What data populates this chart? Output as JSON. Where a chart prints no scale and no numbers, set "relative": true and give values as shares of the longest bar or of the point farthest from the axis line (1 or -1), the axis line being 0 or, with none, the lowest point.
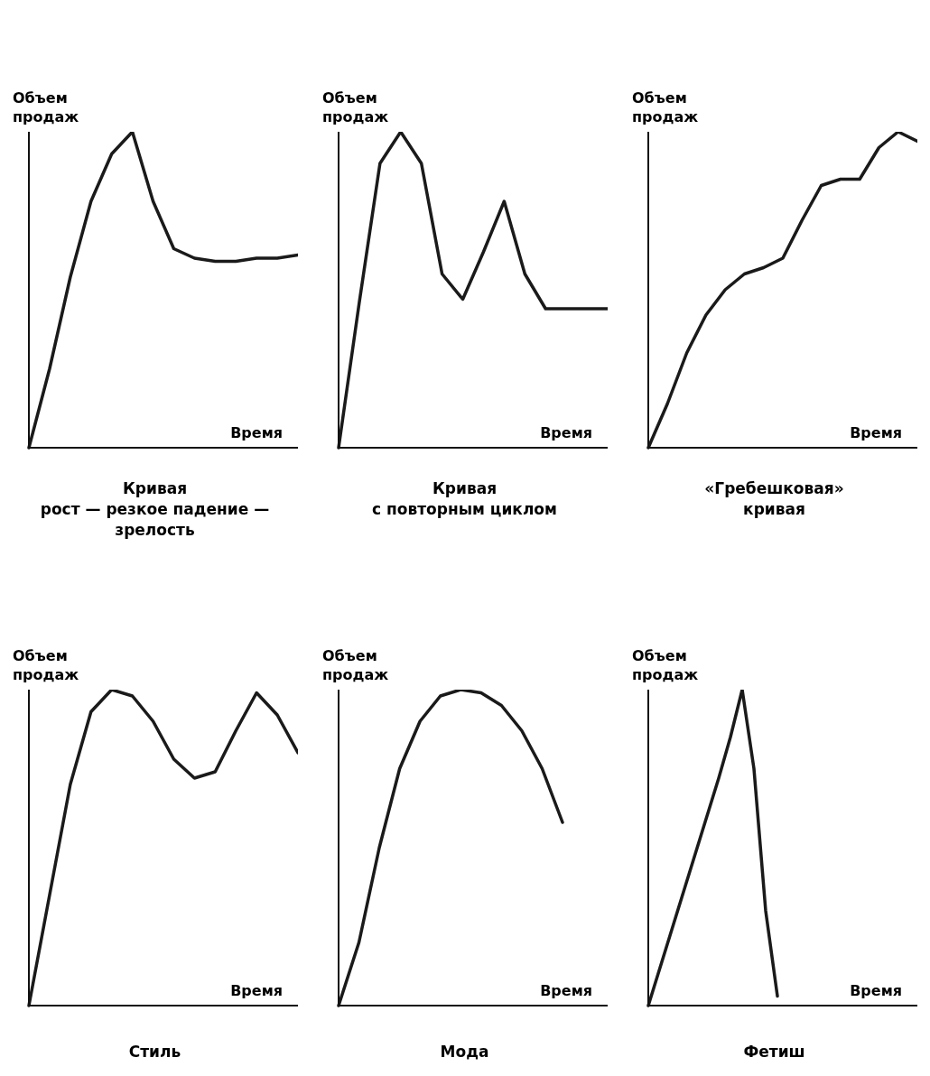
{
  "chart_data": [
    {
      "type": "line",
      "title": "Кривая\nрост — резкое падение —\nзрелость",
      "xlabel": "Время",
      "ylabel": "Объем\nпродаж",
      "relative": true,
      "color": "#1a1a1a",
      "categories": [
        null,
        null,
        null,
        null,
        null,
        null,
        null,
        null,
        null,
        null,
        null,
        null,
        null,
        null
      ],
      "values": [
        0,
        0.25,
        0.54,
        0.78,
        0.93,
        1.0,
        0.78,
        0.63,
        0.6,
        0.59,
        0.59,
        0.6,
        0.6,
        0.61
      ]
    },
    {
      "type": "line",
      "title": "Кривая\nс повторным циклом",
      "xlabel": "Время",
      "ylabel": "Объем\nпродаж",
      "relative": true,
      "color": "#1a1a1a",
      "categories": [
        null,
        null,
        null,
        null,
        null,
        null,
        null,
        null,
        null,
        null,
        null,
        null,
        null,
        null
      ],
      "values": [
        0,
        0.46,
        0.9,
        1.0,
        0.9,
        0.55,
        0.47,
        0.62,
        0.78,
        0.55,
        0.44,
        0.44,
        0.44,
        0.44
      ]
    },
    {
      "type": "line",
      "title": "«Гребешковая»\nкривая",
      "xlabel": "Время",
      "ylabel": "Объем\nпродаж",
      "relative": true,
      "color": "#1a1a1a",
      "categories": [
        null,
        null,
        null,
        null,
        null,
        null,
        null,
        null,
        null,
        null,
        null,
        null,
        null,
        null,
        null
      ],
      "values": [
        0,
        0.14,
        0.3,
        0.42,
        0.5,
        0.55,
        0.57,
        0.6,
        0.72,
        0.83,
        0.85,
        0.85,
        0.95,
        1.0,
        0.97
      ]
    },
    {
      "type": "line",
      "title": "Стиль",
      "xlabel": "Время",
      "ylabel": "Объем\nпродаж",
      "relative": true,
      "color": "#1a1a1a",
      "categories": [
        null,
        null,
        null,
        null,
        null,
        null,
        null,
        null,
        null,
        null,
        null,
        null,
        null,
        null
      ],
      "values": [
        0,
        0.35,
        0.7,
        0.93,
        1.0,
        0.98,
        0.9,
        0.78,
        0.72,
        0.74,
        0.87,
        0.99,
        0.92,
        0.8
      ]
    },
    {
      "type": "line",
      "title": "Мода",
      "xlabel": "Время",
      "ylabel": "Объем\nпродаж",
      "relative": true,
      "color": "#1a1a1a",
      "categories": [
        null,
        null,
        null,
        null,
        null,
        null,
        null,
        null,
        null,
        null,
        null,
        null
      ],
      "values": [
        0,
        0.2,
        0.5,
        0.75,
        0.9,
        0.98,
        1.0,
        0.99,
        0.95,
        0.87,
        0.75,
        0.58
      ]
    },
    {
      "type": "line",
      "title": "Фетиш",
      "xlabel": "Время",
      "ylabel": "Объем\nпродаж",
      "relative": true,
      "color": "#1a1a1a",
      "categories": [
        null,
        null,
        null,
        null,
        null,
        null,
        null,
        null,
        null,
        null,
        null,
        null
      ],
      "values": [
        0,
        0.12,
        0.24,
        0.36,
        0.48,
        0.6,
        0.72,
        0.85,
        1.0,
        0.75,
        0.3,
        0.03
      ]
    }
  ]
}
